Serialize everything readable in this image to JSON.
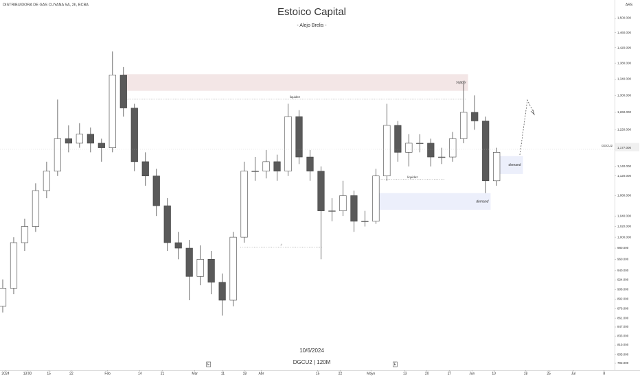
{
  "chart_data": {
    "type": "candlestick",
    "symbol_line": "DISTRIBUIDORA DE GAS CUYANA SA, 2h, BCBA",
    "title": "Estoico Capital",
    "subtitle": "- Alejo Brelis -",
    "watermark_date": "10/6/2024",
    "watermark_symbol": "DGCU2 | 120M",
    "currency": "ARS",
    "log_scale": true,
    "up_color": "#ffffff",
    "down_color": "#5a5a5a",
    "edge_color": "#444444",
    "xlim": [
      0,
      112
    ],
    "ylim": [
      782,
      1551
    ],
    "xticks": [
      {
        "value": 1,
        "label": "2024"
      },
      {
        "value": 5,
        "label": "13:00"
      },
      {
        "value": 8.9,
        "label": "15"
      },
      {
        "value": 13,
        "label": "22"
      },
      {
        "value": 19.6,
        "label": "Feb"
      },
      {
        "value": 25.5,
        "label": "14"
      },
      {
        "value": 29.6,
        "label": "21"
      },
      {
        "value": 35.5,
        "label": "Mar"
      },
      {
        "value": 40.6,
        "label": "11"
      },
      {
        "value": 44.6,
        "label": "18"
      },
      {
        "value": 47.6,
        "label": "Abr"
      },
      {
        "value": 57.9,
        "label": "15"
      },
      {
        "value": 62,
        "label": "22"
      },
      {
        "value": 67.6,
        "label": "Mayo"
      },
      {
        "value": 73.8,
        "label": "13"
      },
      {
        "value": 77.8,
        "label": "20"
      },
      {
        "value": 81.9,
        "label": "27"
      },
      {
        "value": 86,
        "label": "Jun"
      },
      {
        "value": 90,
        "label": "10"
      },
      {
        "value": 95.8,
        "label": "18"
      },
      {
        "value": 100,
        "label": "25"
      },
      {
        "value": 104.5,
        "label": "Jul"
      },
      {
        "value": 110.1,
        "label": "8"
      }
    ],
    "yticks": [
      {
        "value": 1500,
        "label": "1,500.000"
      },
      {
        "value": 1460,
        "label": "1,460.000"
      },
      {
        "value": 1420,
        "label": "1,420.000"
      },
      {
        "value": 1380,
        "label": "1,380.000"
      },
      {
        "value": 1340,
        "label": "1,340.000"
      },
      {
        "value": 1300,
        "label": "1,300.000"
      },
      {
        "value": 1260,
        "label": "1,260.000"
      },
      {
        "value": 1220,
        "label": "1,220.000"
      },
      {
        "value": 1140,
        "label": "1,140.000"
      },
      {
        "value": 1120,
        "label": "1,120.000"
      },
      {
        "value": 1080,
        "label": "1,080.000"
      },
      {
        "value": 1040,
        "label": "1,040.000"
      },
      {
        "value": 1020,
        "label": "1,020.000"
      },
      {
        "value": 1000,
        "label": "1,000.000"
      },
      {
        "value": 980,
        "label": "980.000"
      },
      {
        "value": 960,
        "label": "960.000"
      },
      {
        "value": 940,
        "label": "940.000"
      },
      {
        "value": 924,
        "label": "924.000"
      },
      {
        "value": 908,
        "label": "908.000"
      },
      {
        "value": 892,
        "label": "892.000"
      },
      {
        "value": 876,
        "label": "876.000"
      },
      {
        "value": 861,
        "label": "861.000"
      },
      {
        "value": 847,
        "label": "847.000"
      },
      {
        "value": 833,
        "label": "833.000"
      },
      {
        "value": 819,
        "label": "819.000"
      },
      {
        "value": 805,
        "label": "805.000"
      },
      {
        "value": 792,
        "label": "792.000"
      }
    ],
    "candles": {
      "x": [
        0.5,
        2.5,
        4.5,
        6.5,
        8.5,
        10.5,
        12.5,
        14.5,
        16.5,
        18.5,
        20.5,
        22.5,
        24.5,
        26.5,
        28.5,
        30.5,
        32.5,
        34.5,
        36.5,
        38.5,
        40.5,
        42.5,
        44.5,
        46.5,
        48.5,
        50.5,
        52.5,
        54.5,
        56.5,
        58.5,
        60.5,
        62.5,
        64.5,
        66.5,
        68.5,
        70.5,
        72.5,
        74.5,
        76.5,
        78.5,
        80.5,
        82.5,
        84.5,
        86.5,
        88.5,
        90.5
      ],
      "open": [
        880,
        910,
        990,
        1020,
        1090,
        1130,
        1200,
        1190,
        1210,
        1190,
        1180,
        1350,
        1270,
        1150,
        1120,
        1060,
        990,
        980,
        930,
        960,
        920,
        890,
        1000,
        1130,
        1130,
        1150,
        1130,
        1250,
        1160,
        1130,
        1050,
        1050,
        1080,
        1030,
        1030,
        1120,
        1230,
        1170,
        1190,
        1190,
        1160,
        1160,
        1200,
        1260,
        1240,
        1110
      ],
      "high": [
        925,
        1000,
        1035,
        1105,
        1150,
        1290,
        1230,
        1235,
        1225,
        1200,
        1410,
        1370,
        1280,
        1170,
        1135,
        1075,
        1010,
        995,
        985,
        975,
        935,
        1010,
        1150,
        1160,
        1175,
        1165,
        1280,
        1265,
        1175,
        1140,
        1075,
        1110,
        1090,
        1050,
        1135,
        1280,
        1240,
        1210,
        1210,
        1200,
        1180,
        1215,
        1330,
        1300,
        1250,
        1180
      ],
      "low": [
        870,
        900,
        975,
        1010,
        1075,
        1120,
        1170,
        1180,
        1170,
        1150,
        1170,
        1250,
        1130,
        1100,
        1040,
        975,
        960,
        890,
        915,
        900,
        865,
        880,
        990,
        1110,
        1115,
        1110,
        1120,
        1145,
        1110,
        960,
        1030,
        1040,
        1010,
        1020,
        1025,
        1110,
        1150,
        1140,
        1170,
        1140,
        1145,
        1150,
        1190,
        1220,
        1085,
        1100
      ],
      "close": [
        910,
        990,
        1020,
        1090,
        1130,
        1200,
        1190,
        1210,
        1190,
        1180,
        1350,
        1270,
        1150,
        1120,
        1060,
        990,
        980,
        930,
        960,
        920,
        890,
        1000,
        1130,
        1130,
        1150,
        1130,
        1250,
        1160,
        1130,
        1050,
        1050,
        1080,
        1030,
        1030,
        1120,
        1230,
        1170,
        1190,
        1190,
        1160,
        1160,
        1200,
        1260,
        1240,
        1110,
        1170
      ]
    },
    "zones": [
      {
        "label": "supply",
        "color": "#f3e6e6",
        "xlim": [
          22.3,
          85.3
        ],
        "ylim": [
          1311,
          1352
        ]
      },
      {
        "label": "demand",
        "color": "#eceffb",
        "xlim": [
          68.8,
          89.4
        ],
        "ylim": [
          1052,
          1085
        ]
      },
      {
        "label": "demand",
        "color": "#eceffb",
        "xlim": [
          90.8,
          95.3
        ],
        "ylim": [
          1124,
          1162
        ]
      }
    ],
    "levels": [
      {
        "label": "liquidez",
        "y": 1291,
        "xlim": [
          22.5,
          85
        ]
      },
      {
        "label": "liquidez",
        "y": 1113,
        "xlim": [
          69.4,
          81
        ]
      },
      {
        "label": "✓",
        "y": 982,
        "xlim": [
          43.8,
          58.8
        ]
      }
    ],
    "events": [
      {
        "x": 38,
        "label": "E"
      },
      {
        "x": 72,
        "label": "E"
      }
    ],
    "last_price": {
      "name": "DGCU2",
      "value": 1177,
      "label": "1,177.000"
    }
  }
}
